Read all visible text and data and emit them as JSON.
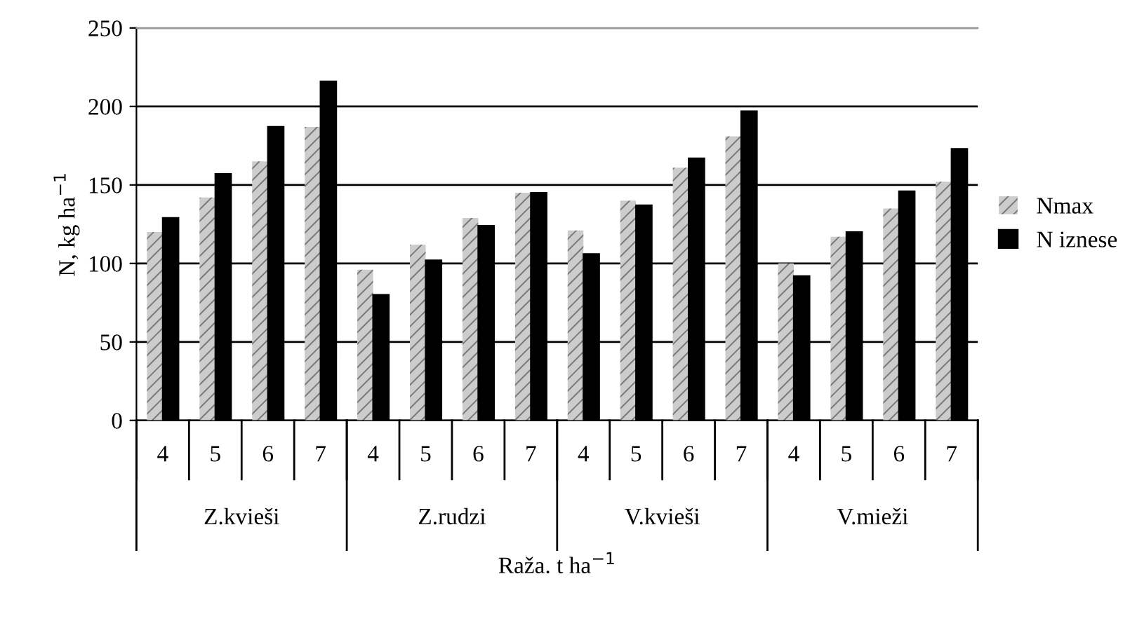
{
  "chart_data": {
    "type": "bar",
    "xlabel": "Raža. t ha$^{−1}$",
    "ylabel": "N, kg ha$^{−1}$",
    "categories": [
      "4",
      "5",
      "6",
      "7",
      "4",
      "5",
      "6",
      "7",
      "4",
      "5",
      "6",
      "7",
      "4",
      "5",
      "6",
      "7"
    ],
    "series": [
      {
        "name": "Nmax",
        "color": "#cccccc",
        "values": [
          120,
          142,
          165,
          187,
          96,
          112,
          129,
          145,
          121,
          140,
          161,
          181,
          100,
          117,
          135,
          152
        ]
      },
      {
        "name": "N iznese",
        "color": "#000000",
        "values": [
          129,
          157,
          187,
          216,
          80,
          102,
          124,
          145,
          106,
          137,
          167,
          197,
          92,
          120,
          146,
          173
        ]
      }
    ],
    "annotations": [
      "Z.kvieši",
      "Z.rudzi",
      "V.kvieši",
      "V.mieži"
    ],
    "ylim": [
      0,
      250
    ],
    "yticks": [
      0,
      50,
      100,
      150,
      200,
      250
    ],
    "grid": "y",
    "legend": "right"
  }
}
